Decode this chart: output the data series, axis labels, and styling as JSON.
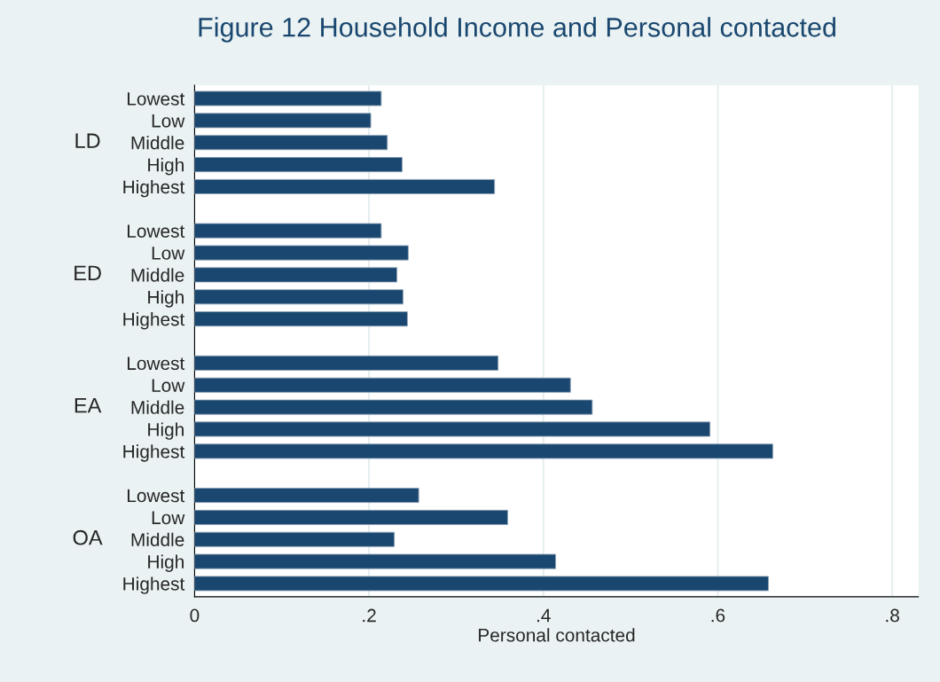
{
  "chart_data": {
    "type": "bar",
    "orientation": "horizontal",
    "title": "Figure 12 Household Income and Personal contacted",
    "xlabel": "Personal contacted",
    "categories": [
      "Lowest",
      "Low",
      "Middle",
      "High",
      "Highest",
      null,
      "Lowest",
      "Low",
      "Middle",
      "High",
      "Highest",
      null,
      "Lowest",
      "Low",
      "Middle",
      "High",
      "Highest",
      null,
      "Lowest",
      "Low",
      "Middle",
      "High",
      "Highest"
    ],
    "values": [
      0.214,
      0.202,
      0.221,
      0.238,
      0.344,
      null,
      0.214,
      0.245,
      0.232,
      0.239,
      0.244,
      null,
      0.348,
      0.431,
      0.456,
      0.591,
      0.663,
      null,
      0.257,
      0.359,
      0.229,
      0.414,
      0.658
    ],
    "color": "#1a476f",
    "annotations": [
      "LD",
      "ED",
      "EA",
      "OA"
    ],
    "xlim": [
      0,
      0.83
    ],
    "xticks": [
      0,
      {
        "value": 0.2,
        "label": ".2"
      },
      {
        "value": 0.4,
        "label": ".4"
      },
      {
        "value": 0.6,
        "label": ".6"
      },
      {
        "value": 0.8,
        "label": ".8"
      }
    ],
    "grid": "x"
  }
}
